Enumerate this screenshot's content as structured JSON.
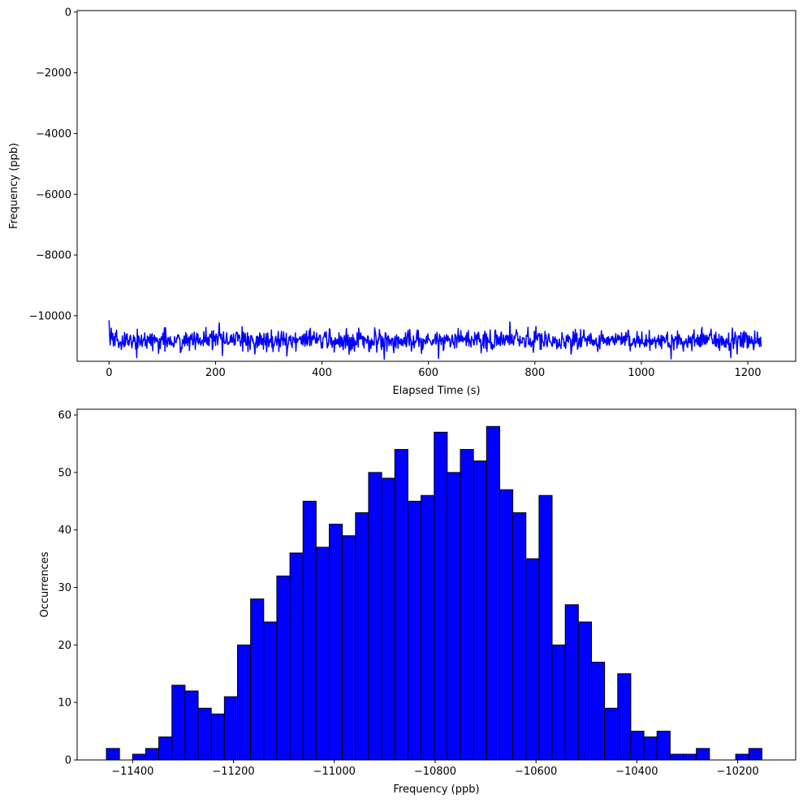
{
  "chart_data": [
    {
      "type": "line",
      "title": "",
      "xlabel": "Elapsed Time (s)",
      "ylabel": "Frequency (ppb)",
      "xlim": [
        -60,
        1290
      ],
      "ylim": [
        -11500,
        50
      ],
      "xticks": [
        0,
        200,
        400,
        600,
        800,
        1000,
        1200
      ],
      "yticks": [
        0,
        -2000,
        -4000,
        -6000,
        -8000,
        -10000
      ],
      "grid": false,
      "series": [
        {
          "color": "#0000ff",
          "x_start": 0,
          "x_end": 1225,
          "n_points": 1226,
          "mean": -10810,
          "std": 175,
          "min": -11430,
          "max": -10140,
          "first_value": -10150,
          "last_value": -11020
        }
      ]
    },
    {
      "type": "bar",
      "title": "",
      "xlabel": "Frequency (ppb)",
      "ylabel": "Occurrences",
      "xlim": [
        -11510,
        -10085
      ],
      "ylim": [
        0,
        61
      ],
      "xticks": [
        -11400,
        -11200,
        -11000,
        -10800,
        -10600,
        -10400,
        -10200
      ],
      "yticks": [
        0,
        10,
        20,
        30,
        40,
        50,
        60
      ],
      "grid": false,
      "color": "#0000ff",
      "edgecolor": "#000000",
      "bin_start": -11452,
      "bin_width": 26,
      "values": [
        2,
        0,
        1,
        2,
        4,
        13,
        12,
        9,
        8,
        11,
        20,
        28,
        24,
        32,
        36,
        45,
        37,
        41,
        39,
        43,
        50,
        49,
        54,
        45,
        46,
        57,
        50,
        54,
        52,
        58,
        47,
        43,
        35,
        46,
        20,
        27,
        24,
        17,
        9,
        15,
        5,
        4,
        5,
        1,
        1,
        2,
        0,
        0,
        1,
        2
      ]
    }
  ]
}
